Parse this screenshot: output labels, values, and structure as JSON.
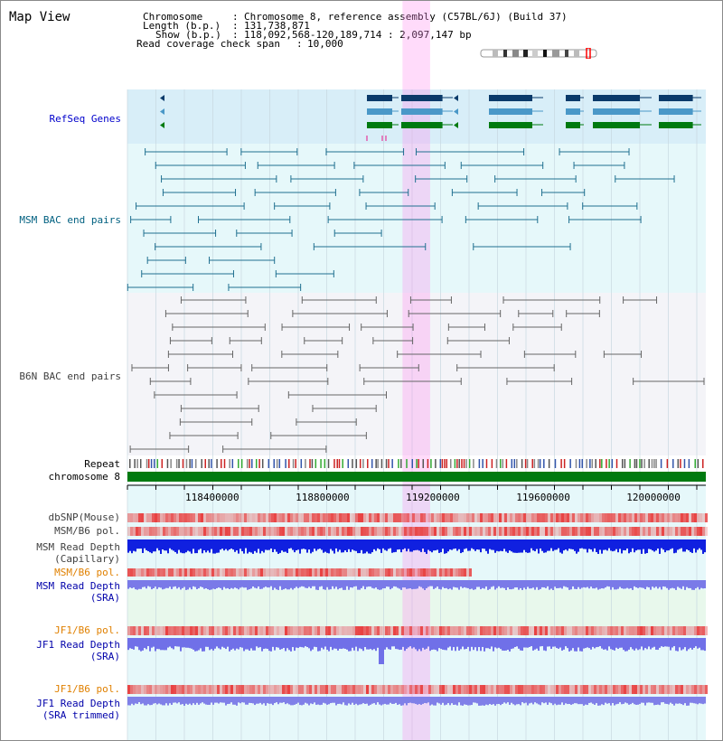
{
  "title": "Map View",
  "info": {
    "chromosome_label": "Chromosome",
    "chromosome_value": "Chromosome 8, reference assembly (C57BL/6J) (Build 37)",
    "length_label": "Length (b.p.)",
    "length_value": "131,738,871",
    "show_label": "Show (b.p.)",
    "show_value": "118,092,568-120,189,714 : 2,097,147 bp",
    "coverage_label": "Read coverage check span",
    "coverage_value": "10,000"
  },
  "tracks": {
    "refseq": "RefSeq Genes",
    "msm_bac": "MSM BAC end pairs",
    "b6n_bac": "B6N BAC end pairs",
    "repeat": "Repeat",
    "chromosome": "chromosome 8",
    "dbsnp": "dbSNP(Mouse)",
    "msm_b6_pol": "MSM/B6 pol.",
    "msm_read_depth_cap_1": "MSM Read Depth",
    "msm_read_depth_cap_2": "(Capillary)",
    "msm_b6_pol_sra": "MSM/B6 pol.",
    "msm_read_depth_sra_1": "MSM Read Depth",
    "msm_read_depth_sra_2": "(SRA)",
    "jf1_b6_pol": "JF1/B6 pol.",
    "jf1_read_depth_sra_1": "JF1 Read Depth",
    "jf1_read_depth_sra_2": "(SRA)",
    "jf1_b6_pol_2": "JF1/B6 pol.",
    "jf1_read_depth_trim_1": "JF1 Read Depth",
    "jf1_read_depth_trim_2": "(SRA trimmed)"
  },
  "axis": {
    "ticks": [
      "118400000",
      "118800000",
      "119200000",
      "119600000",
      "120000000"
    ],
    "tick_values": [
      118400000,
      118800000,
      119200000,
      119600000,
      120000000
    ],
    "range": [
      118092568,
      120189714
    ]
  },
  "highlight_range": [
    119090000,
    119190000
  ],
  "colors": {
    "refseq_label": "#0000cc",
    "msm_label": "#006080",
    "b6n_label": "#404040",
    "orange_label": "#e08000",
    "blue_label": "#0000aa",
    "highlight": "#ff88ee"
  }
}
